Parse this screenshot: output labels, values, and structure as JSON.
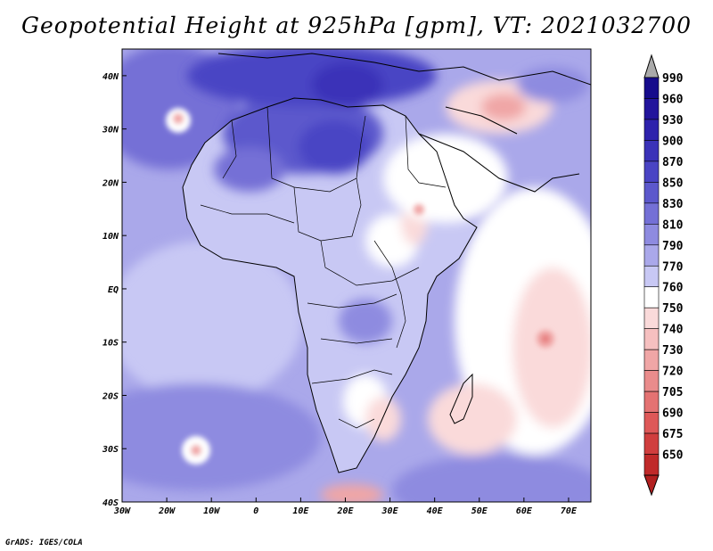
{
  "title": "Geopotential Height at 925hPa [gpm], VT: 2021032700",
  "credit": "GrADS: IGES/COLA",
  "map": {
    "lon_range": [
      -30,
      75
    ],
    "lat_range": [
      -40,
      45
    ],
    "lat_ticks": [
      {
        "value": 40,
        "label": "40N"
      },
      {
        "value": 30,
        "label": "30N"
      },
      {
        "value": 20,
        "label": "20N"
      },
      {
        "value": 10,
        "label": "10N"
      },
      {
        "value": 0,
        "label": "EQ"
      },
      {
        "value": -10,
        "label": "10S"
      },
      {
        "value": -20,
        "label": "20S"
      },
      {
        "value": -30,
        "label": "30S"
      },
      {
        "value": -40,
        "label": "40S"
      }
    ],
    "lon_ticks": [
      {
        "value": -30,
        "label": "30W"
      },
      {
        "value": -20,
        "label": "20W"
      },
      {
        "value": -10,
        "label": "10W"
      },
      {
        "value": 0,
        "label": "0"
      },
      {
        "value": 10,
        "label": "10E"
      },
      {
        "value": 20,
        "label": "20E"
      },
      {
        "value": 30,
        "label": "30E"
      },
      {
        "value": 40,
        "label": "40E"
      },
      {
        "value": 50,
        "label": "50E"
      },
      {
        "value": 60,
        "label": "60E"
      },
      {
        "value": 70,
        "label": "70E"
      }
    ]
  },
  "colorbar": {
    "levels": [
      {
        "label": "990",
        "color": "#160b8c"
      },
      {
        "label": "960",
        "color": "#22149c"
      },
      {
        "label": "930",
        "color": "#2e22ac"
      },
      {
        "label": "900",
        "color": "#3a32b8"
      },
      {
        "label": "870",
        "color": "#4a44c4"
      },
      {
        "label": "850",
        "color": "#5c58cc"
      },
      {
        "label": "830",
        "color": "#7470d6"
      },
      {
        "label": "810",
        "color": "#8e8be0"
      },
      {
        "label": "790",
        "color": "#aaa8ea"
      },
      {
        "label": "770",
        "color": "#c8c8f4"
      },
      {
        "label": "760",
        "color": "#ffffff"
      },
      {
        "label": "750",
        "color": "#fadada"
      },
      {
        "label": "740",
        "color": "#f6c0c0"
      },
      {
        "label": "730",
        "color": "#f0a6a6"
      },
      {
        "label": "720",
        "color": "#ea8c8c"
      },
      {
        "label": "705",
        "color": "#e47272"
      },
      {
        "label": "690",
        "color": "#de5858"
      },
      {
        "label": "675",
        "color": "#d03e3e"
      },
      {
        "label": "650",
        "color": "#c02a2a"
      }
    ],
    "top_arrow_color": "#aaaaaa",
    "bottom_arrow_color": "#b22020"
  },
  "colors": {
    "ocean_base": "#aaa8ea",
    "land_base": "#c8c8f4"
  }
}
